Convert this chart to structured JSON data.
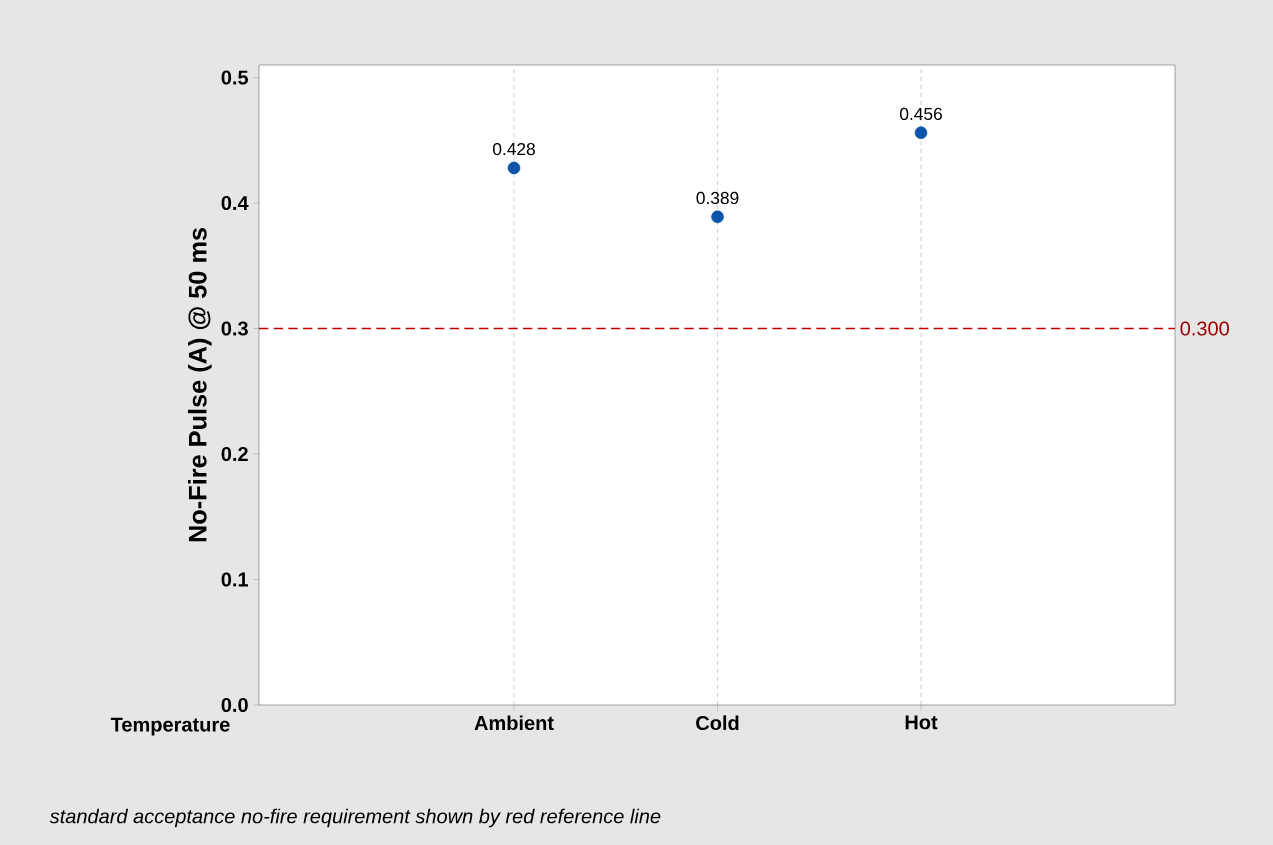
{
  "chart_data": {
    "type": "scatter",
    "xlabel": "Temperature",
    "ylabel": "No-Fire Pulse (A) @ 50 ms",
    "categories": [
      "Ambient",
      "Cold",
      "Hot"
    ],
    "values": [
      0.428,
      0.389,
      0.456
    ],
    "color": "#0a55a8",
    "marker": "circle",
    "data_labels": true,
    "ylim": [
      0,
      0.51
    ],
    "yticks": [
      {
        "value": 0,
        "label": "0.0"
      },
      0.1,
      0.2,
      0.3,
      0.4,
      0.5
    ],
    "grid": "x",
    "ref_lines": [
      {
        "axis": "y",
        "value": 0.3,
        "label": "0.300",
        "color": "#c00000",
        "line_style": "dashed"
      }
    ],
    "annotations": [
      "standard acceptance no-fire requirement shown by red reference line"
    ]
  }
}
